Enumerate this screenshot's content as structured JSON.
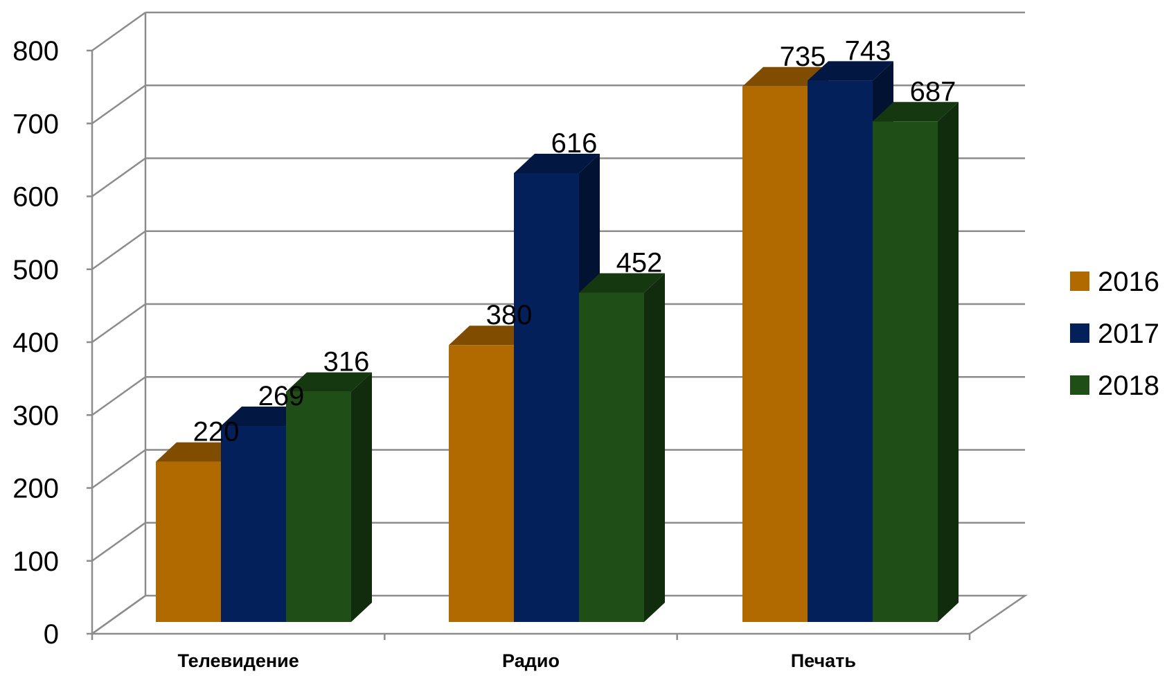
{
  "chart_data": {
    "type": "bar",
    "style": "3d-clustered-column",
    "categories": [
      "Телевидение",
      "Радио",
      "Печать"
    ],
    "series": [
      {
        "name": "2016",
        "values": [
          220,
          380,
          735
        ],
        "color": "#B06A00"
      },
      {
        "name": "2017",
        "values": [
          269,
          616,
          743
        ],
        "color": "#03205B"
      },
      {
        "name": "2018",
        "values": [
          316,
          452,
          687
        ],
        "color": "#1F4E17"
      }
    ],
    "y_ticks": [
      "0",
      "100",
      "200",
      "300",
      "400",
      "500",
      "600",
      "700",
      "800"
    ],
    "ylim": [
      0,
      800
    ],
    "grid": true,
    "legend_position": "right",
    "data_labels": true
  }
}
